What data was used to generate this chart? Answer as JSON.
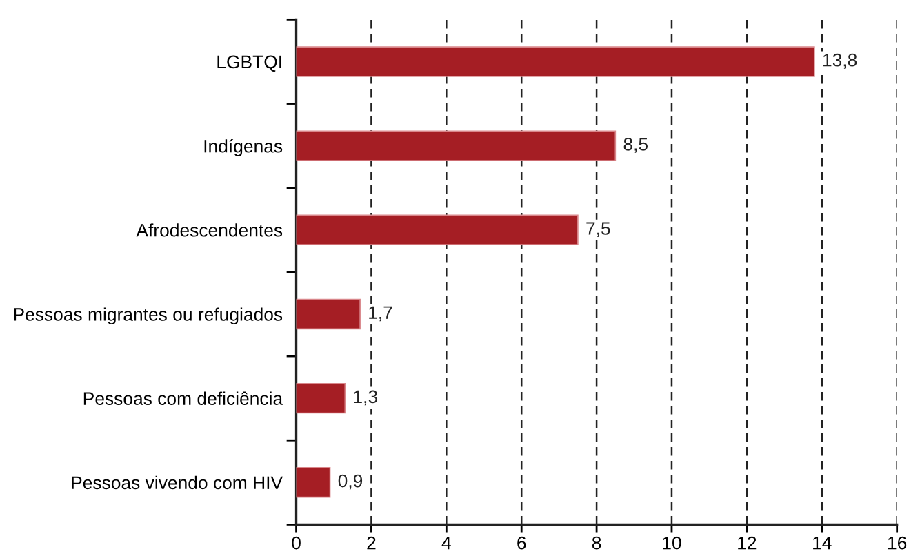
{
  "chart_data": {
    "type": "bar",
    "orientation": "horizontal",
    "categories": [
      "LGBTQI",
      "Indígenas",
      "Afrodescendentes",
      "Pessoas migrantes ou refugiados",
      "Pessoas com deficiência",
      "Pessoas vivendo com HIV"
    ],
    "values": [
      13.8,
      8.5,
      7.5,
      1.7,
      1.3,
      0.9
    ],
    "value_labels": [
      "13,8",
      "8,5",
      "7,5",
      "1,7",
      "1,3",
      "0,9"
    ],
    "color": "#a51e24",
    "xlim": [
      0,
      16
    ],
    "xticks": [
      0,
      2,
      4,
      6,
      8,
      10,
      12,
      14,
      16
    ],
    "grid": "x",
    "line_style": "dashed"
  }
}
